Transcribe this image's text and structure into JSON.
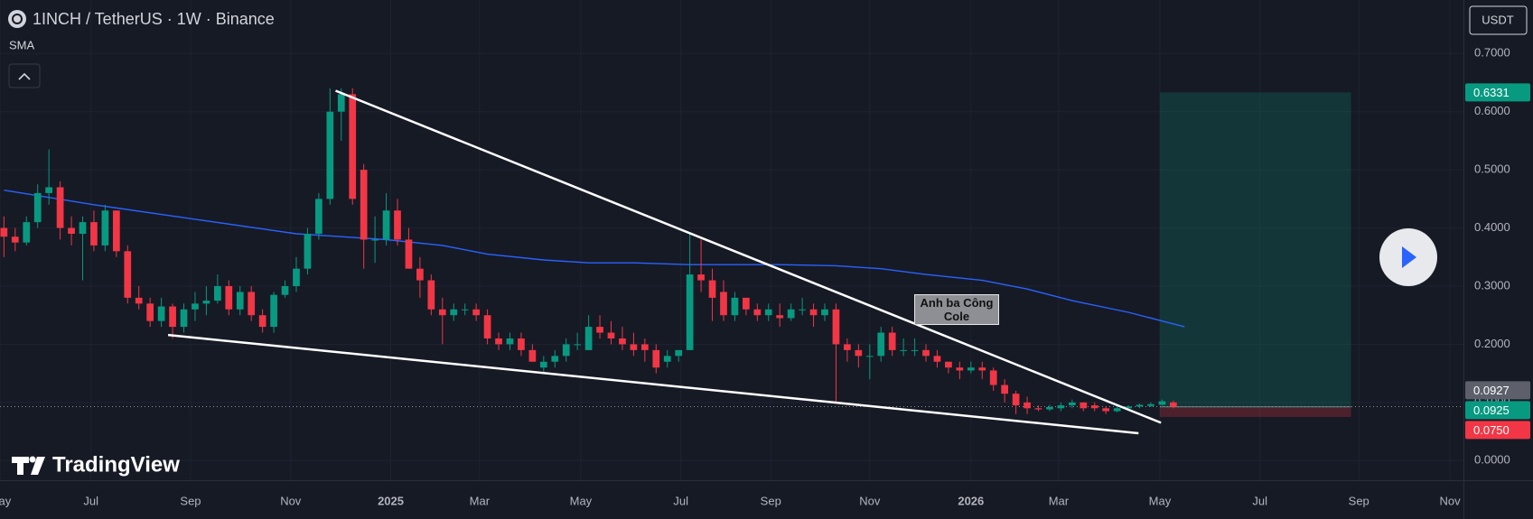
{
  "header": {
    "symbol": "1INCH / TetherUS · 1W · Binance",
    "indicator": "SMA",
    "currency": "USDT",
    "brand": "TradingView",
    "note": "Anh ba Công Cole"
  },
  "chart_data": {
    "type": "candlestick",
    "up_color": "#089981",
    "down_color": "#f23645",
    "open": [
      0.4,
      0.385,
      0.375,
      0.41,
      0.46,
      0.47,
      0.4,
      0.39,
      0.41,
      0.37,
      0.43,
      0.36,
      0.28,
      0.27,
      0.24,
      0.265,
      0.23,
      0.26,
      0.27,
      0.275,
      0.3,
      0.26,
      0.29,
      0.25,
      0.23,
      0.285,
      0.3,
      0.33,
      0.39,
      0.45,
      0.6,
      0.63,
      0.5,
      0.38,
      0.38,
      0.43,
      0.38,
      0.33,
      0.31,
      0.26,
      0.25,
      0.26,
      0.26,
      0.25,
      0.21,
      0.2,
      0.21,
      0.19,
      0.16,
      0.17,
      0.18,
      0.2,
      0.19,
      0.23,
      0.22,
      0.21,
      0.2,
      0.2,
      0.19,
      0.17,
      0.18,
      0.19,
      0.32,
      0.31,
      0.29,
      0.25,
      0.28,
      0.26,
      0.25,
      0.25,
      0.245,
      0.26,
      0.26,
      0.25,
      0.26,
      0.2,
      0.19,
      0.18,
      0.18,
      0.22,
      0.19,
      0.19,
      0.19,
      0.18,
      0.17,
      0.16,
      0.155,
      0.16,
      0.155,
      0.13,
      0.115,
      0.1,
      0.09,
      0.088,
      0.09,
      0.095,
      0.1,
      0.095,
      0.09,
      0.085,
      0.09,
      0.093,
      0.094,
      0.096,
      0.1
    ],
    "high": [
      0.42,
      0.4,
      0.42,
      0.475,
      0.535,
      0.48,
      0.42,
      0.42,
      0.43,
      0.44,
      0.43,
      0.37,
      0.3,
      0.28,
      0.28,
      0.27,
      0.27,
      0.29,
      0.3,
      0.32,
      0.31,
      0.3,
      0.3,
      0.26,
      0.29,
      0.31,
      0.35,
      0.4,
      0.46,
      0.64,
      0.64,
      0.64,
      0.51,
      0.42,
      0.46,
      0.45,
      0.4,
      0.35,
      0.32,
      0.28,
      0.27,
      0.27,
      0.27,
      0.26,
      0.22,
      0.22,
      0.22,
      0.2,
      0.18,
      0.19,
      0.21,
      0.22,
      0.25,
      0.25,
      0.24,
      0.23,
      0.22,
      0.21,
      0.2,
      0.19,
      0.19,
      0.39,
      0.38,
      0.33,
      0.31,
      0.29,
      0.28,
      0.27,
      0.27,
      0.27,
      0.27,
      0.28,
      0.27,
      0.27,
      0.27,
      0.21,
      0.2,
      0.2,
      0.23,
      0.23,
      0.21,
      0.21,
      0.2,
      0.19,
      0.17,
      0.17,
      0.17,
      0.17,
      0.16,
      0.14,
      0.12,
      0.11,
      0.095,
      0.096,
      0.1,
      0.105,
      0.1,
      0.1,
      0.093,
      0.095,
      0.095,
      0.098,
      0.1,
      0.105,
      0.103
    ],
    "low": [
      0.35,
      0.36,
      0.37,
      0.4,
      0.44,
      0.38,
      0.37,
      0.31,
      0.36,
      0.36,
      0.35,
      0.27,
      0.26,
      0.23,
      0.23,
      0.21,
      0.22,
      0.24,
      0.25,
      0.27,
      0.25,
      0.25,
      0.24,
      0.22,
      0.22,
      0.28,
      0.29,
      0.32,
      0.38,
      0.44,
      0.55,
      0.44,
      0.33,
      0.34,
      0.37,
      0.37,
      0.33,
      0.28,
      0.25,
      0.2,
      0.24,
      0.25,
      0.24,
      0.2,
      0.19,
      0.19,
      0.18,
      0.17,
      0.15,
      0.16,
      0.17,
      0.19,
      0.19,
      0.21,
      0.2,
      0.19,
      0.18,
      0.17,
      0.15,
      0.16,
      0.17,
      0.19,
      0.29,
      0.24,
      0.24,
      0.24,
      0.25,
      0.24,
      0.24,
      0.23,
      0.24,
      0.25,
      0.23,
      0.24,
      0.1,
      0.17,
      0.16,
      0.14,
      0.17,
      0.18,
      0.18,
      0.18,
      0.17,
      0.16,
      0.15,
      0.14,
      0.15,
      0.14,
      0.12,
      0.1,
      0.08,
      0.08,
      0.085,
      0.085,
      0.085,
      0.09,
      0.085,
      0.085,
      0.08,
      0.083,
      0.087,
      0.09,
      0.092,
      0.095,
      0.09
    ],
    "close": [
      0.385,
      0.375,
      0.41,
      0.46,
      0.47,
      0.4,
      0.39,
      0.41,
      0.37,
      0.43,
      0.36,
      0.28,
      0.27,
      0.24,
      0.265,
      0.23,
      0.26,
      0.27,
      0.275,
      0.3,
      0.26,
      0.29,
      0.25,
      0.23,
      0.285,
      0.3,
      0.33,
      0.39,
      0.45,
      0.6,
      0.63,
      0.45,
      0.38,
      0.38,
      0.43,
      0.38,
      0.33,
      0.31,
      0.26,
      0.25,
      0.26,
      0.26,
      0.25,
      0.21,
      0.2,
      0.21,
      0.19,
      0.17,
      0.17,
      0.18,
      0.2,
      0.2,
      0.23,
      0.22,
      0.21,
      0.2,
      0.19,
      0.19,
      0.16,
      0.18,
      0.19,
      0.32,
      0.31,
      0.28,
      0.25,
      0.28,
      0.26,
      0.25,
      0.26,
      0.245,
      0.26,
      0.26,
      0.25,
      0.26,
      0.2,
      0.19,
      0.18,
      0.18,
      0.22,
      0.19,
      0.19,
      0.19,
      0.18,
      0.17,
      0.16,
      0.155,
      0.16,
      0.155,
      0.13,
      0.115,
      0.095,
      0.09,
      0.088,
      0.092,
      0.095,
      0.1,
      0.09,
      0.09,
      0.085,
      0.09,
      0.093,
      0.096,
      0.097,
      0.102,
      0.0925
    ],
    "xlim": [
      -0.35,
      129.8
    ],
    "xticks": [
      {
        "value": -0.35,
        "label": "May"
      },
      {
        "value": 7.74,
        "label": "Jul"
      },
      {
        "value": 16.6,
        "label": "Sep"
      },
      {
        "value": 25.5,
        "label": "Nov"
      },
      {
        "value": 34.4,
        "label": "2025"
      },
      {
        "value": 42.3,
        "label": "Mar"
      },
      {
        "value": 51.3,
        "label": "May"
      },
      {
        "value": 60.2,
        "label": "Jul"
      },
      {
        "value": 68.2,
        "label": "Sep"
      },
      {
        "value": 77.0,
        "label": "Nov"
      },
      {
        "value": 86.0,
        "label": "2026"
      },
      {
        "value": 93.8,
        "label": "Mar"
      },
      {
        "value": 102.8,
        "label": "May"
      },
      {
        "value": 111.7,
        "label": "Jul"
      },
      {
        "value": 120.5,
        "label": "Sep"
      },
      {
        "value": 128.6,
        "label": "Nov"
      }
    ],
    "ylim": [
      -0.0337,
      0.792
    ],
    "yticks": [
      {
        "value": 0,
        "label": "0.0000"
      },
      {
        "value": 0.1,
        "label": "0.1000"
      },
      {
        "value": 0.2,
        "label": "0.2000"
      },
      {
        "value": 0.3,
        "label": "0.3000"
      },
      {
        "value": 0.4,
        "label": "0.4000"
      },
      {
        "value": 0.5,
        "label": "0.5000"
      },
      {
        "value": 0.6,
        "label": "0.6000"
      },
      {
        "value": 0.7,
        "label": "0.7000"
      }
    ],
    "grid": true,
    "sma": {
      "name": "SMA",
      "color": "#2962ff",
      "x": [
        0,
        8,
        17,
        26,
        30,
        34,
        39,
        43,
        48,
        52,
        56,
        61,
        65,
        69,
        74,
        78,
        82,
        87,
        91,
        95,
        100,
        105
      ],
      "values": [
        0.465,
        0.44,
        0.415,
        0.39,
        0.385,
        0.38,
        0.37,
        0.355,
        0.345,
        0.34,
        0.34,
        0.337,
        0.337,
        0.337,
        0.335,
        0.33,
        0.32,
        0.31,
        0.295,
        0.275,
        0.255,
        0.23
      ]
    },
    "trendlines": [
      {
        "color": "#ffffff",
        "x": [
          29.5,
          102.9
        ],
        "values": [
          0.636,
          0.065
        ]
      },
      {
        "color": "#ffffff",
        "x": [
          14.6,
          100.9
        ],
        "values": [
          0.216,
          0.047
        ]
      }
    ],
    "position": {
      "x": [
        102.8,
        119.8
      ],
      "target": 0.6331,
      "entry": 0.0925,
      "stop": {
        "value": 0.075,
        "label": "0.0750"
      }
    },
    "last_price": 0.0927
  }
}
